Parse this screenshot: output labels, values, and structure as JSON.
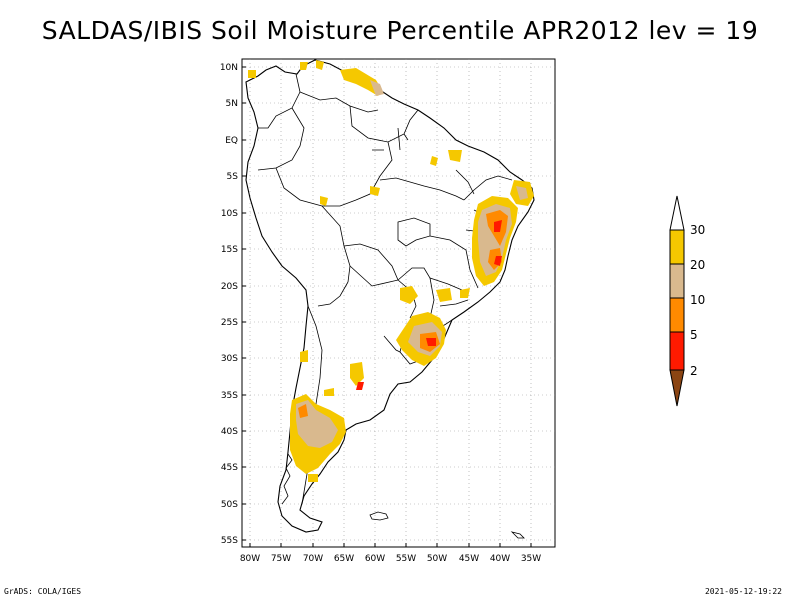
{
  "title": "SALDAS/IBIS Soil Moisture Percentile APR2012 lev = 19",
  "map": {
    "lat_labels": [
      "10N",
      "5N",
      "EQ",
      "5S",
      "10S",
      "15S",
      "20S",
      "25S",
      "30S",
      "35S",
      "40S",
      "45S",
      "50S",
      "55S"
    ],
    "lon_labels": [
      "80W",
      "75W",
      "70W",
      "65W",
      "60W",
      "55W",
      "50W",
      "45W",
      "40W",
      "35W"
    ]
  },
  "colorbar": {
    "labels": [
      "30",
      "20",
      "10",
      "5",
      "2"
    ],
    "colors": {
      "above30": "#ffffff",
      "c20_30": "#f5c800",
      "c10_20": "#d9b98e",
      "c5_10": "#ff8a00",
      "c2_5": "#ff1a00",
      "below2": "#8b4513"
    }
  },
  "footer": {
    "left": "GrADS: COLA/IGES",
    "right": "2021-05-12-19:22"
  }
}
